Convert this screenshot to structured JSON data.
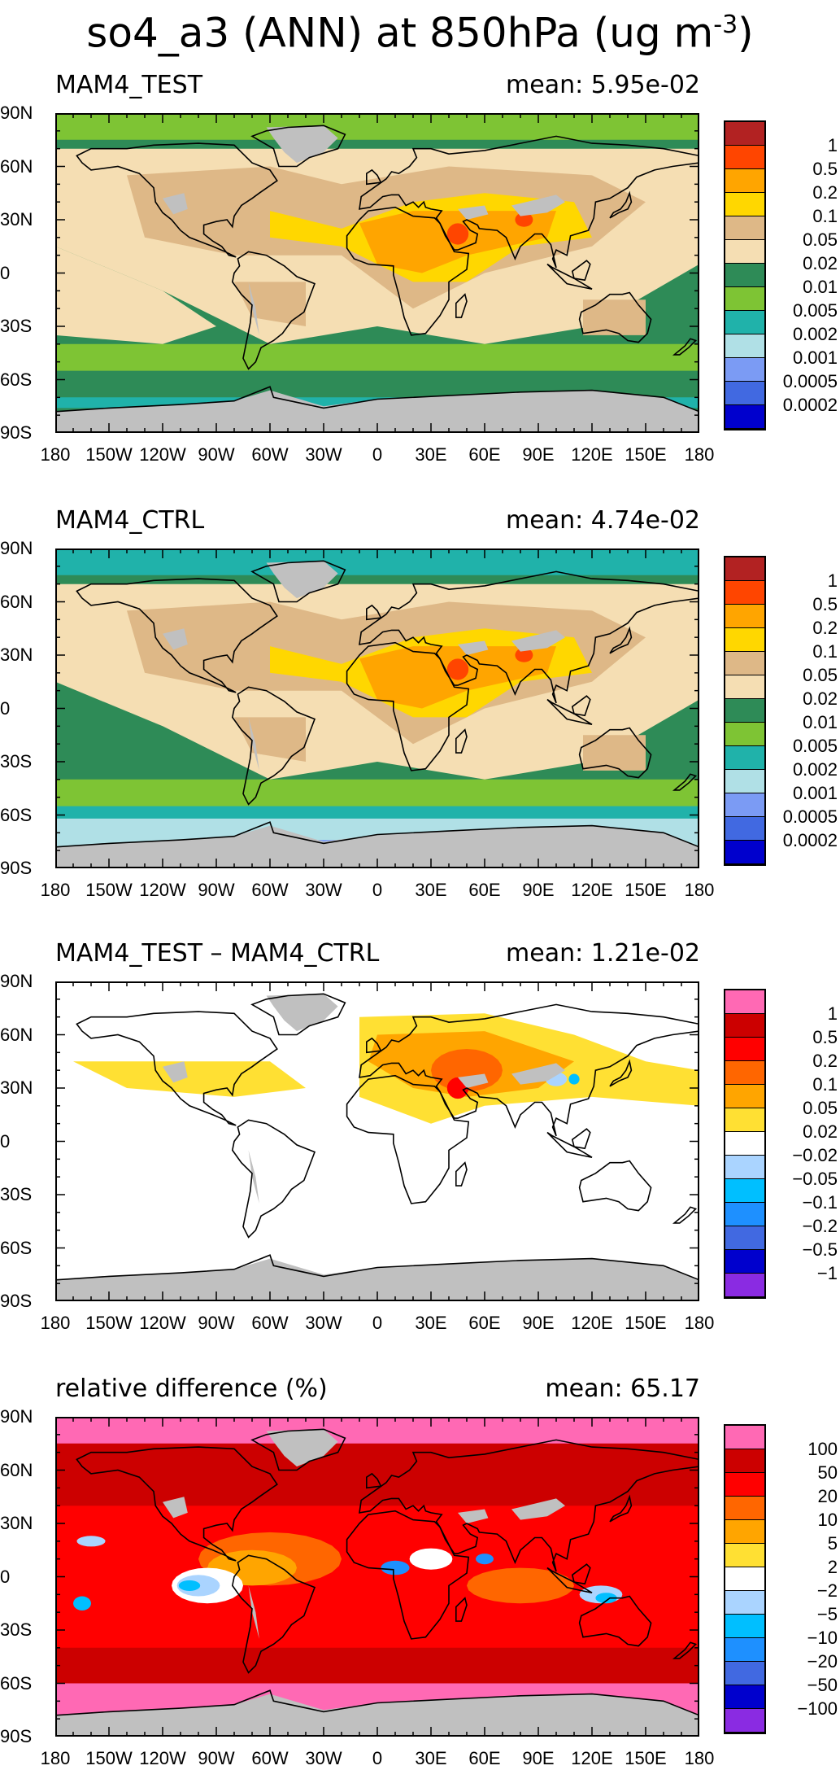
{
  "figure": {
    "title": "so4_a3 (ANN) at 850hPa (ug m",
    "title_sup": "-3",
    "title_close": ")"
  },
  "axes": {
    "lat_ticks": [
      "90N",
      "60N",
      "30N",
      "0",
      "30S",
      "60S",
      "90S"
    ],
    "lon_ticks": [
      "180",
      "150W",
      "120W",
      "90W",
      "60W",
      "30W",
      "0",
      "30E",
      "60E",
      "90E",
      "120E",
      "150E",
      "180"
    ]
  },
  "colors": {
    "land_gray": "#c0c0c0",
    "coast": "#000000"
  },
  "panels": [
    {
      "name": "test",
      "title": "MAM4_TEST",
      "mean": "mean: 5.95e-02",
      "levels": [
        "1",
        "0.5",
        "0.2",
        "0.1",
        "0.05",
        "0.02",
        "0.01",
        "0.005",
        "0.002",
        "0.001",
        "0.0005",
        "0.0002"
      ],
      "colors": [
        "#b22222",
        "#ff4500",
        "#ffa500",
        "#ffd700",
        "#deb887",
        "#f5deb3",
        "#2e8b57",
        "#7ec434",
        "#20b2aa",
        "#b0e0e6",
        "#7b9bf4",
        "#4169e1",
        "#0000cd"
      ]
    },
    {
      "name": "ctrl",
      "title": "MAM4_CTRL",
      "mean": "mean: 4.74e-02",
      "levels": [
        "1",
        "0.5",
        "0.2",
        "0.1",
        "0.05",
        "0.02",
        "0.01",
        "0.005",
        "0.002",
        "0.001",
        "0.0005",
        "0.0002"
      ],
      "colors": [
        "#b22222",
        "#ff4500",
        "#ffa500",
        "#ffd700",
        "#deb887",
        "#f5deb3",
        "#2e8b57",
        "#7ec434",
        "#20b2aa",
        "#b0e0e6",
        "#7b9bf4",
        "#4169e1",
        "#0000cd"
      ]
    },
    {
      "name": "diff",
      "title": "MAM4_TEST – MAM4_CTRL",
      "mean": "mean: 1.21e-02",
      "levels": [
        "1",
        "0.5",
        "0.2",
        "0.1",
        "0.05",
        "0.02",
        "−0.02",
        "−0.05",
        "−0.1",
        "−0.2",
        "−0.5",
        "−1"
      ],
      "colors": [
        "#ff69b4",
        "#cc0000",
        "#ff0000",
        "#ff6600",
        "#ffa500",
        "#ffe033",
        "#ffffff",
        "#aad4ff",
        "#00bfff",
        "#1e90ff",
        "#4169e1",
        "#0000cd",
        "#8a2be2"
      ]
    },
    {
      "name": "reldiff",
      "title": "relative difference (%)",
      "mean": "mean: 65.17",
      "levels": [
        "100",
        "50",
        "20",
        "10",
        "5",
        "2",
        "−2",
        "−5",
        "−10",
        "−20",
        "−50",
        "−100"
      ],
      "colors": [
        "#ff69b4",
        "#cc0000",
        "#ff0000",
        "#ff6600",
        "#ffa500",
        "#ffe033",
        "#ffffff",
        "#aad4ff",
        "#00bfff",
        "#1e90ff",
        "#4169e1",
        "#0000cd",
        "#8a2be2"
      ]
    }
  ]
}
